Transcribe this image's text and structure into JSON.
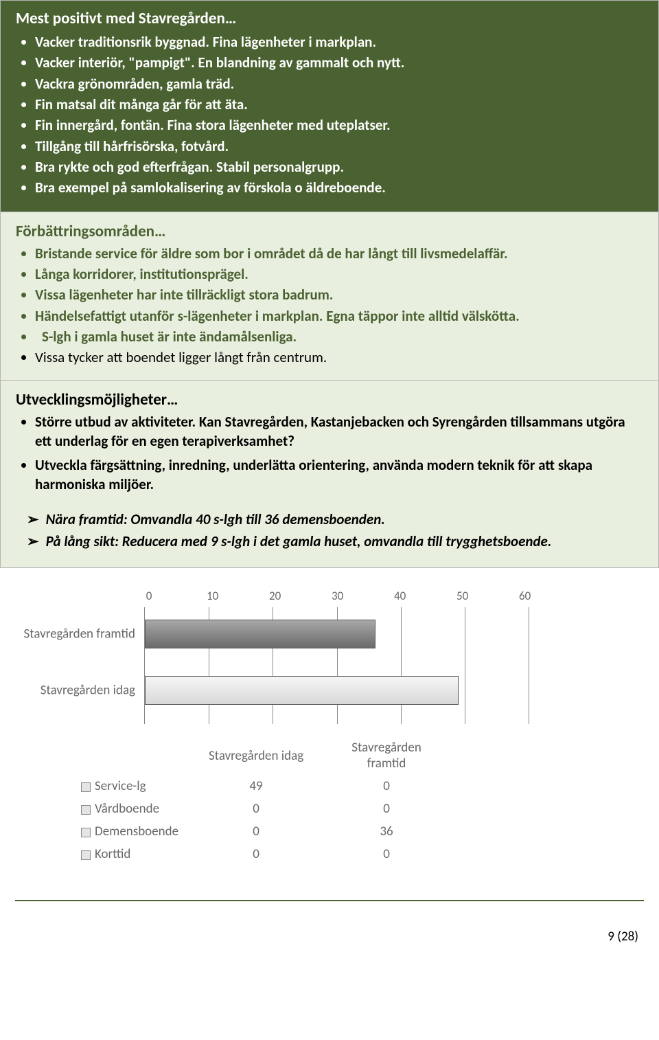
{
  "section1": {
    "heading": "Mest positivt med Stavregården…",
    "items": [
      "Vacker traditionsrik byggnad. Fina lägenheter i markplan.",
      "Vacker interiör, \"pampigt\". En blandning av gammalt och nytt.",
      "Vackra grönområden, gamla träd.",
      "Fin matsal dit många går för att äta.",
      "Fin innergård, fontän. Fina stora lägenheter med uteplatser.",
      "Tillgång till hårfrisörska, fotvård.",
      "Bra rykte och god efterfrågan. Stabil personalgrupp.",
      "Bra exempel på samlokalisering av förskola o äldreboende."
    ]
  },
  "section2": {
    "heading": "Förbättringsområden…",
    "items": [
      "Bristande service för äldre som bor i området då de har långt till livsmedelaffär.",
      "Långa korridorer, institutionsprägel.",
      "Vissa lägenheter har inte tillräckligt stora badrum.",
      "Händelsefattigt utanför s-lägenheter i markplan. Egna täppor inte alltid välskötta.",
      "S-lgh i gamla huset är inte ändamålsenliga."
    ],
    "black_item": "Vissa tycker att boendet ligger långt från centrum."
  },
  "section3": {
    "heading": "Utvecklingsmöjligheter…",
    "items": [
      "Större utbud av aktiviteter. Kan Stavregården, Kastanjebacken och Syrengården tillsammans utgöra ett underlag för en egen terapiverksamhet?",
      "Utveckla färgsättning, inredning, underlätta orientering, använda modern teknik för att skapa harmoniska miljöer."
    ],
    "arrows": [
      "Nära framtid: Omvandla 40 s-lgh till 36 demensboenden.",
      "På lång sikt: Reducera med 9 s-lgh i det gamla huset, omvandla till trygghetsboende."
    ]
  },
  "chart": {
    "ticks": [
      "0",
      "10",
      "20",
      "30",
      "40",
      "50",
      "60"
    ],
    "max": 60,
    "bars": [
      {
        "label": "Stavregården framtid",
        "value": 36,
        "style": "dark"
      },
      {
        "label": "Stavregården idag",
        "value": 49,
        "style": "light"
      }
    ]
  },
  "table": {
    "col1": "Stavregården idag",
    "col2": "Stavregården framtid",
    "rows": [
      {
        "label": "Service-lg",
        "v1": "49",
        "v2": "0"
      },
      {
        "label": "Vårdboende",
        "v1": "0",
        "v2": "0"
      },
      {
        "label": "Demensboende",
        "v1": "0",
        "v2": "36"
      },
      {
        "label": "Korttid",
        "v1": "0",
        "v2": "0"
      }
    ]
  },
  "pagenum": "9 (28)"
}
